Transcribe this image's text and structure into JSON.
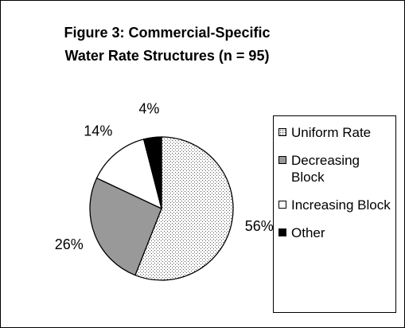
{
  "chart_data": {
    "type": "pie",
    "title": [
      "Figure 3: Commercial-Specific",
      "Water Rate Structures (n = 95)"
    ],
    "categories": [
      "Uniform Rate",
      "Decreasing Block",
      "Increasing Block",
      "Other"
    ],
    "values": [
      56,
      26,
      14,
      4
    ],
    "value_labels": [
      "56%",
      "26%",
      "14%",
      "4%"
    ],
    "colors": [
      "stipple",
      "#999999",
      "#ffffff",
      "#000000"
    ],
    "legend": "right"
  }
}
